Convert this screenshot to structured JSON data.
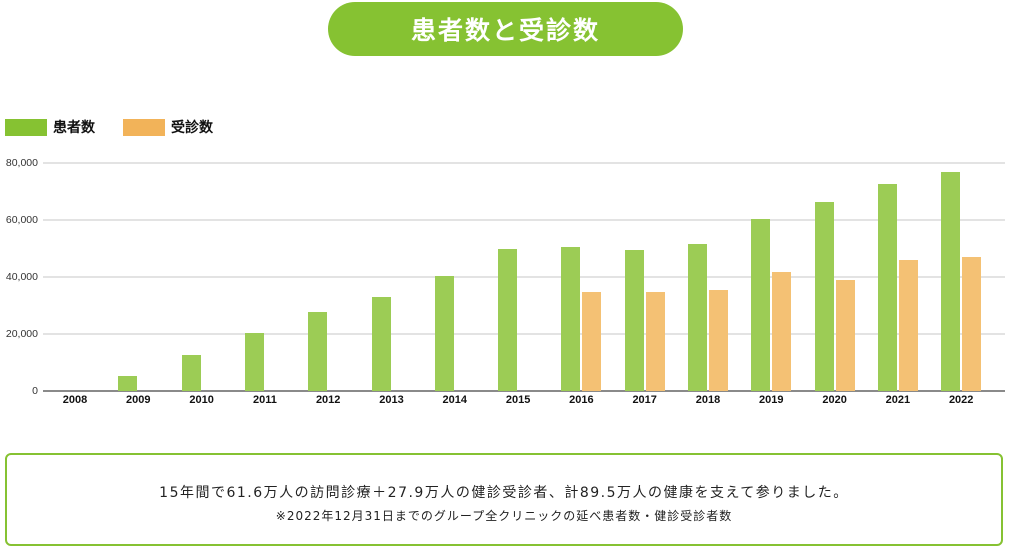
{
  "title": "患者数と受診数",
  "colors": {
    "title_bg": "#86c232",
    "patients_legend": "#86c232",
    "visits_legend": "#f2b359",
    "patients_bar": "#9ccc55",
    "visits_bar": "#f4c174",
    "border": "#86c232"
  },
  "legend": [
    {
      "label": "患者数",
      "color": "#86c232"
    },
    {
      "label": "受診数",
      "color": "#f2b359"
    }
  ],
  "y_ticks": [
    "80,000",
    "60,000",
    "40,000",
    "20,000",
    "0"
  ],
  "chart_data": {
    "type": "bar",
    "title": "患者数と受診数",
    "xlabel": "",
    "ylabel": "",
    "ylim": [
      0,
      80000
    ],
    "grid": true,
    "legend_position": "top-left",
    "categories": [
      "2008",
      "2009",
      "2010",
      "2011",
      "2012",
      "2013",
      "2014",
      "2015",
      "2016",
      "2017",
      "2018",
      "2019",
      "2020",
      "2021",
      "2022"
    ],
    "series": [
      {
        "name": "患者数",
        "color": "#9ccc55",
        "values": [
          0,
          5400,
          12800,
          20200,
          27700,
          33100,
          40400,
          50000,
          50500,
          49600,
          51700,
          60400,
          66200,
          72500,
          76700
        ]
      },
      {
        "name": "受診数",
        "color": "#f4c174",
        "values": [
          0,
          0,
          0,
          0,
          0,
          0,
          0,
          0,
          34800,
          34800,
          35400,
          41600,
          39100,
          46100,
          47100
        ]
      }
    ]
  },
  "note": {
    "main": "15年間で61.6万人の訪問診療＋27.9万人の健診受診者、計89.5万人の健康を支えて参りました。",
    "sub": "※2022年12月31日までのグループ全クリニックの延べ患者数・健診受診者数"
  }
}
